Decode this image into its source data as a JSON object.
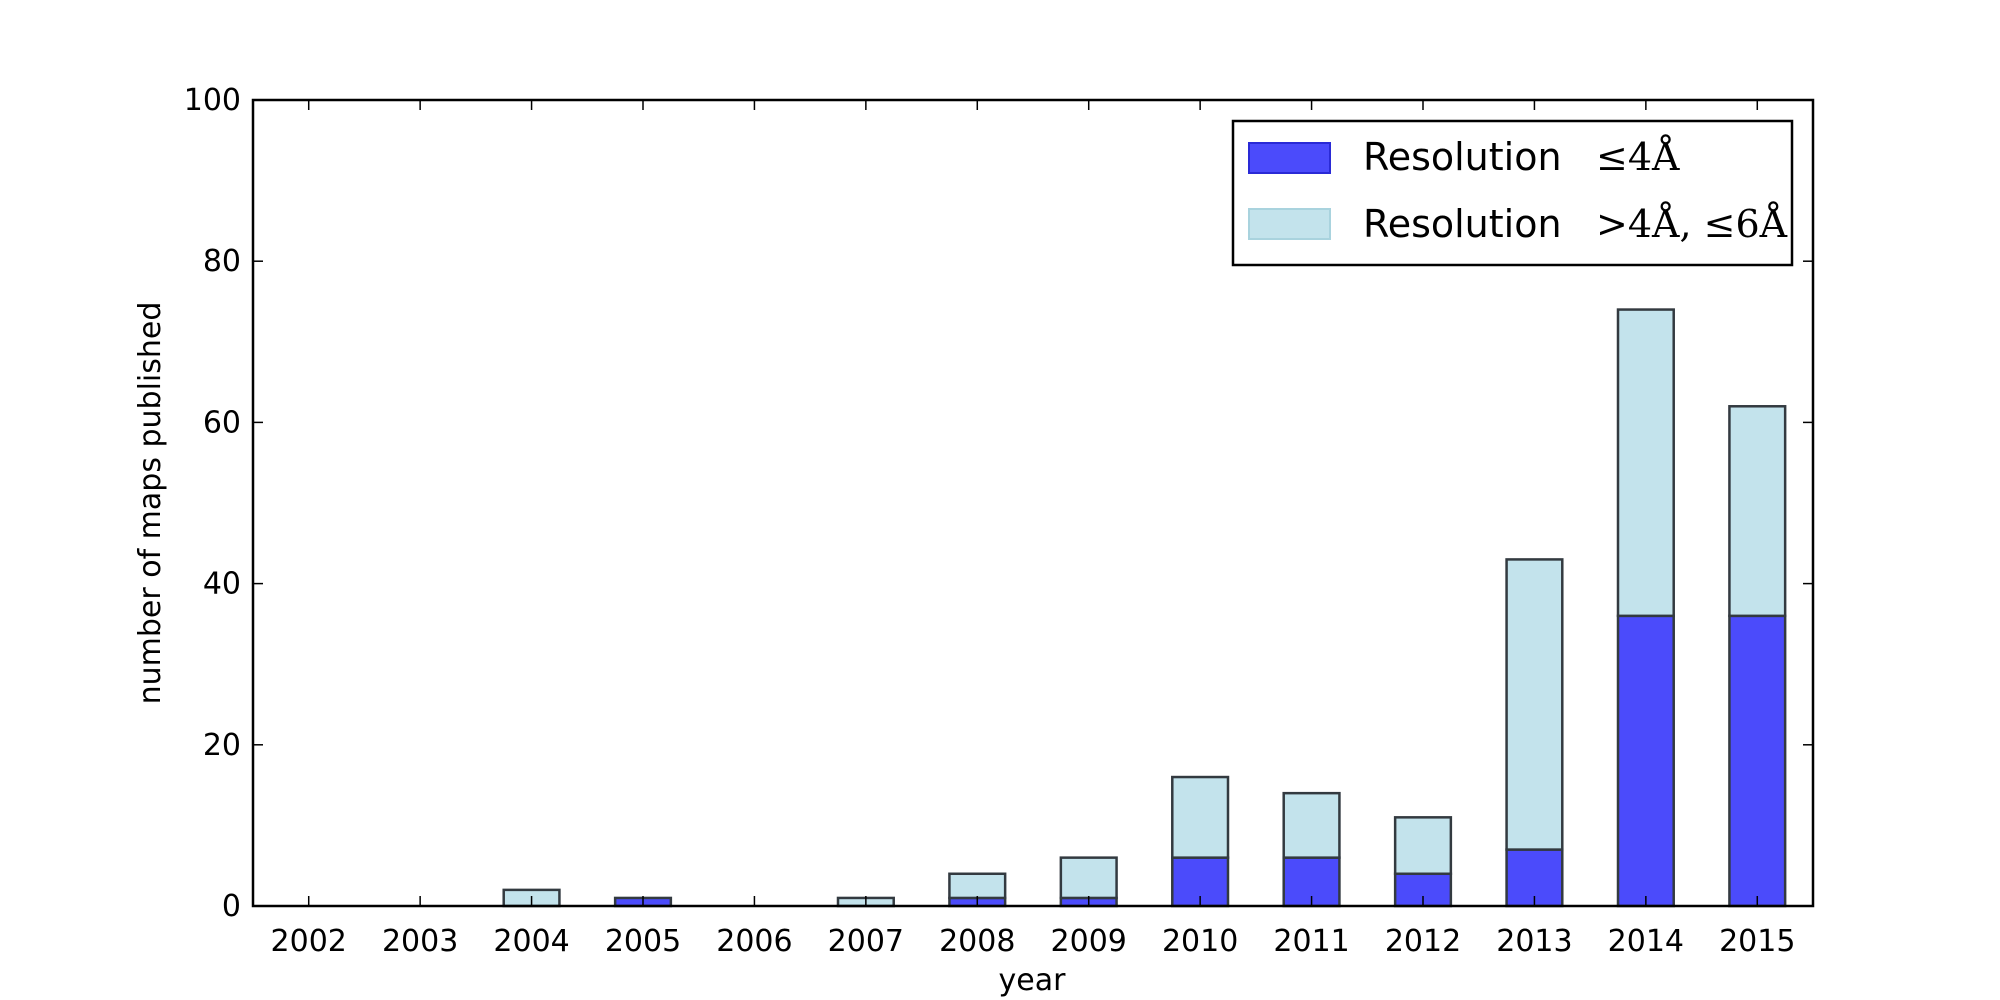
{
  "chart_data": {
    "type": "bar",
    "stacked": true,
    "categories": [
      "2002",
      "2003",
      "2004",
      "2005",
      "2006",
      "2007",
      "2008",
      "2009",
      "2010",
      "2011",
      "2012",
      "2013",
      "2014",
      "2015"
    ],
    "series": [
      {
        "name": "Resolution  ≤4Å",
        "label_text": "Resolution",
        "label_math": "≤4Å",
        "color": "#4b4bfb",
        "values": [
          0,
          0,
          0,
          1,
          0,
          0,
          1,
          1,
          6,
          6,
          4,
          7,
          36,
          36
        ]
      },
      {
        "name": "Resolution  >4Å, ≤6Å",
        "label_text": "Resolution",
        "label_math": ">4Å, ≤6Å",
        "color": "#c3e3ec",
        "values": [
          0,
          0,
          2,
          0,
          0,
          1,
          3,
          5,
          10,
          8,
          7,
          36,
          38,
          26
        ]
      }
    ],
    "xlabel": "year",
    "ylabel": "number of maps published",
    "ylim": [
      0,
      100
    ],
    "yticks": [
      "0",
      "20",
      "40",
      "60",
      "80",
      "100"
    ],
    "grid": false,
    "legend_position": "top-right"
  }
}
